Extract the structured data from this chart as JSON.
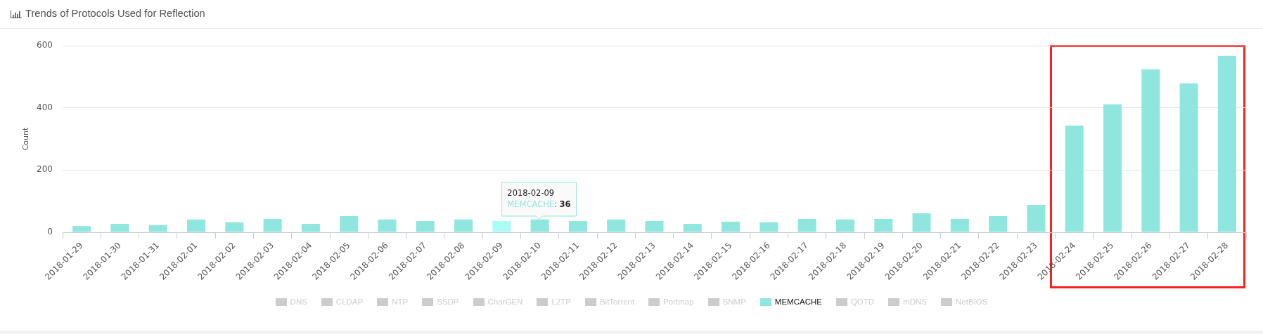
{
  "chart_data": {
    "type": "bar",
    "title": "Trends of Protocols Used for Reflection",
    "ylabel": "Count",
    "categories": [
      "2018-01-29",
      "2018-01-30",
      "2018-01-31",
      "2018-02-01",
      "2018-02-02",
      "2018-02-03",
      "2018-02-04",
      "2018-02-05",
      "2018-02-06",
      "2018-02-07",
      "2018-02-08",
      "2018-02-09",
      "2018-02-10",
      "2018-02-11",
      "2018-02-12",
      "2018-02-13",
      "2018-02-14",
      "2018-02-15",
      "2018-02-16",
      "2018-02-17",
      "2018-02-18",
      "2018-02-19",
      "2018-02-20",
      "2018-02-21",
      "2018-02-22",
      "2018-02-23",
      "2018-02-24",
      "2018-02-25",
      "2018-02-26",
      "2018-02-27",
      "2018-02-28"
    ],
    "series": [
      {
        "name": "DNS",
        "color": "#cccccc",
        "values": [
          null,
          null,
          null,
          null,
          null,
          null,
          null,
          null,
          null,
          null,
          null,
          null,
          null,
          null,
          null,
          null,
          null,
          null,
          null,
          null,
          null,
          null,
          null,
          null,
          null,
          null,
          null,
          null,
          null,
          null,
          null
        ]
      },
      {
        "name": "CLDAP",
        "color": "#cccccc",
        "values": [
          null,
          null,
          null,
          null,
          null,
          null,
          null,
          null,
          null,
          null,
          null,
          null,
          null,
          null,
          null,
          null,
          null,
          null,
          null,
          null,
          null,
          null,
          null,
          null,
          null,
          null,
          null,
          null,
          null,
          null,
          null
        ]
      },
      {
        "name": "NTP",
        "color": "#cccccc",
        "values": [
          null,
          null,
          null,
          null,
          null,
          null,
          null,
          null,
          null,
          null,
          null,
          null,
          null,
          null,
          null,
          null,
          null,
          null,
          null,
          null,
          null,
          null,
          null,
          null,
          null,
          null,
          null,
          null,
          null,
          null,
          null
        ]
      },
      {
        "name": "SSDP",
        "color": "#cccccc",
        "values": [
          null,
          null,
          null,
          null,
          null,
          null,
          null,
          null,
          null,
          null,
          null,
          null,
          null,
          null,
          null,
          null,
          null,
          null,
          null,
          null,
          null,
          null,
          null,
          null,
          null,
          null,
          null,
          null,
          null,
          null,
          null
        ]
      },
      {
        "name": "CharGEN",
        "color": "#cccccc",
        "values": [
          null,
          null,
          null,
          null,
          null,
          null,
          null,
          null,
          null,
          null,
          null,
          null,
          null,
          null,
          null,
          null,
          null,
          null,
          null,
          null,
          null,
          null,
          null,
          null,
          null,
          null,
          null,
          null,
          null,
          null,
          null
        ]
      },
      {
        "name": "L2TP",
        "color": "#cccccc",
        "values": [
          null,
          null,
          null,
          null,
          null,
          null,
          null,
          null,
          null,
          null,
          null,
          null,
          null,
          null,
          null,
          null,
          null,
          null,
          null,
          null,
          null,
          null,
          null,
          null,
          null,
          null,
          null,
          null,
          null,
          null,
          null
        ]
      },
      {
        "name": "BitTorrent",
        "color": "#cccccc",
        "values": [
          null,
          null,
          null,
          null,
          null,
          null,
          null,
          null,
          null,
          null,
          null,
          null,
          null,
          null,
          null,
          null,
          null,
          null,
          null,
          null,
          null,
          null,
          null,
          null,
          null,
          null,
          null,
          null,
          null,
          null,
          null
        ]
      },
      {
        "name": "Portmap",
        "color": "#cccccc",
        "values": [
          null,
          null,
          null,
          null,
          null,
          null,
          null,
          null,
          null,
          null,
          null,
          null,
          null,
          null,
          null,
          null,
          null,
          null,
          null,
          null,
          null,
          null,
          null,
          null,
          null,
          null,
          null,
          null,
          null,
          null,
          null
        ]
      },
      {
        "name": "SNMP",
        "color": "#cccccc",
        "values": [
          null,
          null,
          null,
          null,
          null,
          null,
          null,
          null,
          null,
          null,
          null,
          null,
          null,
          null,
          null,
          null,
          null,
          null,
          null,
          null,
          null,
          null,
          null,
          null,
          null,
          null,
          null,
          null,
          null,
          null,
          null
        ]
      },
      {
        "name": "MEMCACHE",
        "color": "#8fe6de",
        "colors": [
          "#8fe6de",
          "#8fe6de",
          "#8fe6de",
          "#8fe6de",
          "#8fe6de",
          "#8fe6de",
          "#8fe6de",
          "#8fe6de",
          "#8fe6de",
          "#8fe6de",
          "#8fe6de",
          "#aafcf7",
          "#8fe6de",
          "#8fe6de",
          "#8fe6de",
          "#8fe6de",
          "#8fe6de",
          "#8fe6de",
          "#8fe6de",
          "#8fe6de",
          "#8fe6de",
          "#8fe6de",
          "#8fe6de",
          "#8fe6de",
          "#8fe6de",
          "#8fe6de",
          "#8fe6de",
          "#8fe6de",
          "#8fe6de",
          "#8fe6de",
          "#8fe6de"
        ],
        "values": [
          20,
          27,
          23,
          41,
          32,
          43,
          27,
          52,
          41,
          36,
          41,
          36,
          41,
          36,
          41,
          36,
          27,
          34,
          32,
          43,
          41,
          43,
          61,
          43,
          52,
          88,
          343,
          411,
          524,
          479,
          567
        ]
      },
      {
        "name": "QOTD",
        "color": "#cccccc",
        "values": [
          null,
          null,
          null,
          null,
          null,
          null,
          null,
          null,
          null,
          null,
          null,
          null,
          null,
          null,
          null,
          null,
          null,
          null,
          null,
          null,
          null,
          null,
          null,
          null,
          null,
          null,
          null,
          null,
          null,
          null,
          null
        ]
      },
      {
        "name": "mDNS",
        "color": "#cccccc",
        "values": [
          null,
          null,
          null,
          null,
          null,
          null,
          null,
          null,
          null,
          null,
          null,
          null,
          null,
          null,
          null,
          null,
          null,
          null,
          null,
          null,
          null,
          null,
          null,
          null,
          null,
          null,
          null,
          null,
          null,
          null,
          null
        ]
      },
      {
        "name": "NetBIOS",
        "color": "#cccccc",
        "values": [
          null,
          null,
          null,
          null,
          null,
          null,
          null,
          null,
          null,
          null,
          null,
          null,
          null,
          null,
          null,
          null,
          null,
          null,
          null,
          null,
          null,
          null,
          null,
          null,
          null,
          null,
          null,
          null,
          null,
          null,
          null
        ]
      }
    ],
    "ylim": [
      0,
      600
    ],
    "yticks": [
      0,
      200,
      400,
      600
    ],
    "grid": "y",
    "legend": "bottom",
    "annotations": [
      {
        "text": "2018-02-09\nMEMCACHE: 36",
        "x": "2018-02-09",
        "y": 36
      }
    ]
  }
}
